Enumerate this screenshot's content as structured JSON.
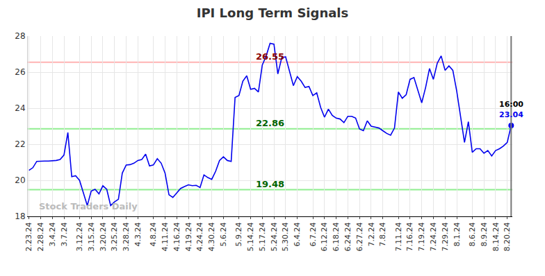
{
  "chart_data": {
    "type": "line",
    "title": "IPI Long Term Signals",
    "watermark": "Stock Traders Daily",
    "color": "#0000ee",
    "grid": true,
    "marker": "last_point",
    "categories": [
      "2.23.24",
      null,
      null,
      "2.28.24",
      null,
      null,
      "3.4.24",
      null,
      null,
      "3.7.24",
      null,
      null,
      null,
      "3.12.24",
      null,
      null,
      "3.15.24",
      null,
      null,
      "3.20.24",
      null,
      null,
      "3.25.24",
      null,
      null,
      "3.28.24",
      null,
      null,
      "4.3.24",
      null,
      null,
      null,
      "4.8.24",
      null,
      null,
      "4.11.24",
      null,
      null,
      "4.16.24",
      null,
      null,
      "4.19.24",
      null,
      null,
      "4.24.24",
      null,
      null,
      "4.30.24",
      null,
      null,
      "5.6.24",
      null,
      null,
      null,
      "5.9.24",
      null,
      null,
      "5.14.24",
      null,
      null,
      "5.17.24",
      null,
      null,
      "5.24.24",
      null,
      null,
      "5.30.24",
      null,
      null,
      "6.4.24",
      null,
      null,
      null,
      "6.7.24",
      null,
      null,
      "6.12.24",
      null,
      null,
      "6.18.24",
      null,
      null,
      "6.24.24",
      null,
      null,
      "6.27.24",
      null,
      null,
      "7.2.24",
      null,
      null,
      "7.8.24",
      null,
      null,
      null,
      "7.11.24",
      null,
      null,
      "7.16.24",
      null,
      null,
      "7.19.24",
      null,
      null,
      "7.24.24",
      null,
      null,
      "7.29.24",
      null,
      null,
      "8.1.24",
      null,
      null,
      null,
      "8.6.24",
      null,
      null,
      "8.9.24",
      null,
      null,
      "8.14.24",
      null,
      null,
      "8.20.24",
      null
    ],
    "values": [
      20.55,
      20.7,
      21.05,
      21.07,
      21.07,
      21.07,
      21.08,
      21.1,
      21.15,
      21.4,
      22.65,
      20.2,
      20.25,
      20.0,
      19.3,
      18.6,
      19.4,
      19.5,
      19.25,
      19.7,
      19.5,
      18.6,
      18.8,
      18.95,
      20.4,
      20.85,
      20.87,
      20.95,
      21.1,
      21.15,
      21.45,
      20.8,
      20.85,
      21.2,
      20.95,
      20.4,
      19.2,
      19.05,
      19.3,
      19.55,
      19.65,
      19.75,
      19.7,
      19.72,
      19.6,
      20.3,
      20.15,
      20.05,
      20.5,
      21.1,
      21.3,
      21.1,
      21.05,
      24.6,
      24.7,
      25.5,
      25.8,
      25.05,
      25.1,
      24.9,
      26.4,
      26.9,
      27.6,
      27.55,
      25.9,
      26.8,
      26.85,
      26.1,
      25.25,
      25.75,
      25.5,
      25.15,
      25.2,
      24.7,
      24.85,
      24.05,
      23.5,
      23.95,
      23.6,
      23.45,
      23.4,
      23.2,
      23.55,
      23.55,
      23.45,
      22.85,
      22.75,
      23.3,
      23.0,
      22.95,
      22.9,
      22.75,
      22.6,
      22.5,
      22.9,
      24.9,
      24.55,
      24.75,
      25.6,
      25.7,
      24.95,
      24.3,
      25.15,
      26.2,
      25.6,
      26.5,
      26.9,
      26.1,
      26.35,
      26.1,
      24.95,
      23.6,
      22.1,
      23.25,
      21.55,
      21.75,
      21.75,
      21.5,
      21.65,
      21.35,
      21.65,
      21.75,
      21.9,
      22.1,
      23.04
    ],
    "ylim": [
      18,
      28
    ],
    "yticks": [
      18,
      20,
      22,
      24,
      26,
      28
    ],
    "levels": [
      {
        "value": 26.55,
        "label": "26.55",
        "color": "#ffb3b3",
        "label_color": "#8b0000"
      },
      {
        "value": 22.86,
        "label": "22.86",
        "color": "#90ee90",
        "label_color": "#006400"
      },
      {
        "value": 19.48,
        "label": "19.48",
        "color": "#90ee90",
        "label_color": "#006400"
      }
    ],
    "last_point": {
      "time_label": "16:00",
      "value_label": "23.04"
    }
  }
}
